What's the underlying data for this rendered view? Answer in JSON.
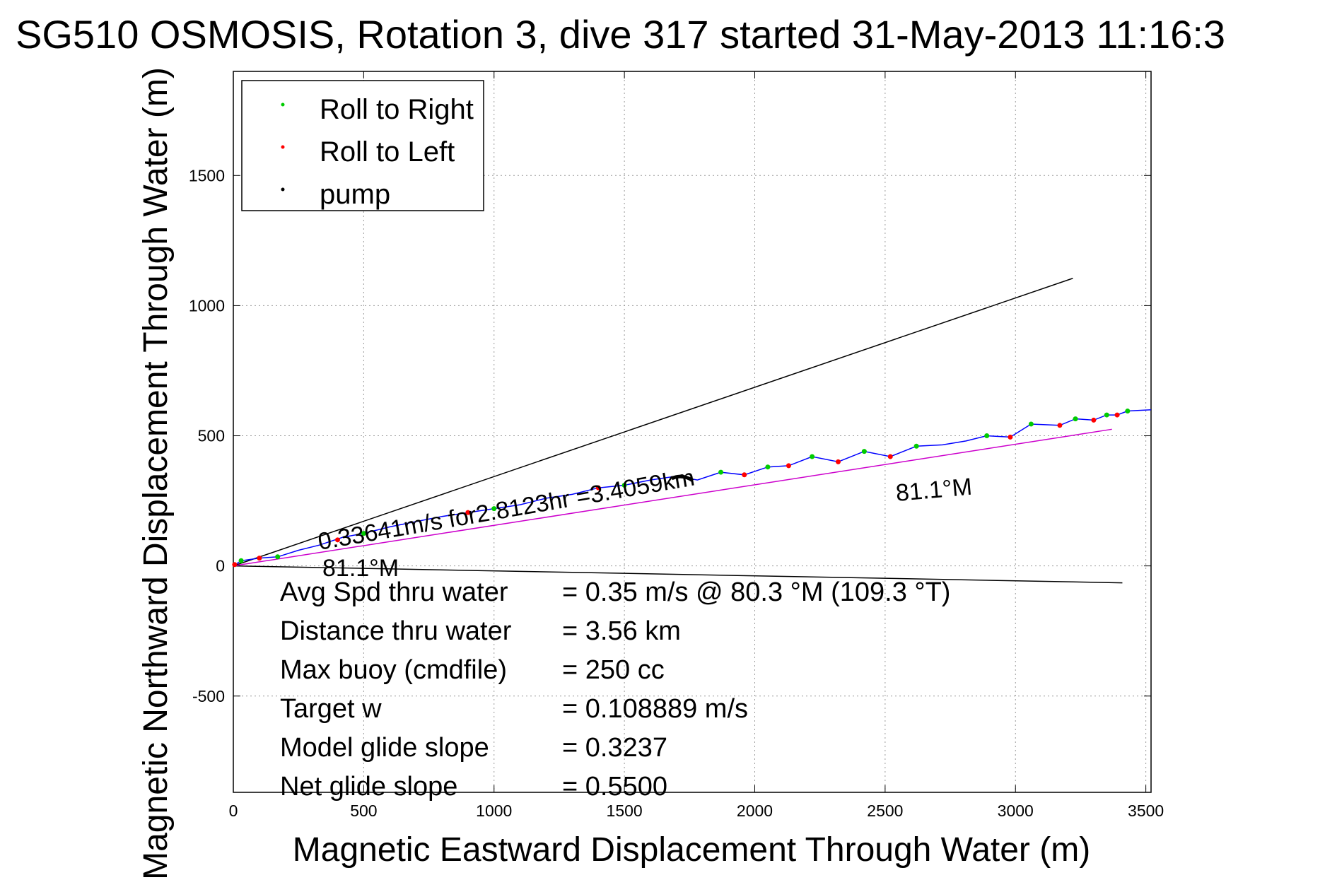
{
  "chart_data": {
    "type": "line",
    "title": "SG510 OSMOSIS, Rotation 3, dive 317 started 31-May-2013 11:16:3",
    "xlabel": "Magnetic Eastward Displacement Through Water (m)",
    "ylabel": "Magnetic Northward Displacement Through Water (m)",
    "xlim": [
      0,
      3520
    ],
    "ylim": [
      -870,
      1900
    ],
    "xticks": [
      0,
      500,
      1000,
      1500,
      2000,
      2500,
      3000,
      3500
    ],
    "yticks": [
      -500,
      0,
      500,
      1000,
      1500
    ],
    "grid": true,
    "legend_position": "top-left",
    "legend": [
      {
        "name": "Roll to Right",
        "color": "#00cc00"
      },
      {
        "name": "Roll to Left",
        "color": "#ff0000"
      },
      {
        "name": "pump",
        "color": "#000000"
      }
    ],
    "series": [
      {
        "name": "track",
        "color": "#0000ff",
        "x": [
          0,
          30,
          100,
          170,
          250,
          330,
          420,
          500,
          600,
          700,
          800,
          900,
          1000,
          1100,
          1200,
          1300,
          1400,
          1500,
          1600,
          1700,
          1780,
          1870,
          1960,
          2050,
          2130,
          2220,
          2320,
          2420,
          2520,
          2620,
          2720,
          2810,
          2890,
          2980,
          3060,
          3170,
          3230,
          3300,
          3350,
          3390,
          3430,
          3520
        ],
        "y": [
          0,
          20,
          30,
          35,
          60,
          80,
          110,
          125,
          150,
          170,
          190,
          205,
          220,
          235,
          260,
          275,
          300,
          310,
          330,
          345,
          330,
          360,
          350,
          380,
          385,
          420,
          400,
          440,
          420,
          460,
          465,
          480,
          500,
          495,
          545,
          540,
          565,
          560,
          580,
          580,
          595,
          600
        ]
      },
      {
        "name": "Roll to Right",
        "color": "#00cc00",
        "x": [
          30,
          170,
          500,
          1000,
          1500,
          1870,
          2050,
          2220,
          2420,
          2620,
          2890,
          3060,
          3230,
          3350,
          3430
        ],
        "y": [
          20,
          35,
          125,
          220,
          310,
          360,
          380,
          420,
          440,
          460,
          500,
          545,
          565,
          580,
          595
        ]
      },
      {
        "name": "Roll to Left",
        "color": "#ff0000",
        "x": [
          5,
          100,
          400,
          900,
          1400,
          1960,
          2130,
          2320,
          2520,
          2980,
          3170,
          3300,
          3390
        ],
        "y": [
          5,
          30,
          100,
          205,
          300,
          350,
          385,
          400,
          420,
          495,
          540,
          560,
          580
        ]
      }
    ],
    "lines": [
      {
        "name": "heading-line-upper",
        "color": "#000000",
        "x": [
          0,
          3220
        ],
        "y": [
          0,
          1105
        ]
      },
      {
        "name": "heading-line-lower",
        "color": "#000000",
        "x": [
          0,
          3410
        ],
        "y": [
          0,
          -65
        ]
      },
      {
        "name": "course-line",
        "color": "#cc00cc",
        "x": [
          0,
          3370
        ],
        "y": [
          0,
          525
        ]
      }
    ],
    "annotations": {
      "speed_summary": "0.33641m/s for2.8123hr =3.4059km",
      "heading_near_origin": "81.1°M",
      "heading_mid": "81.1°M"
    },
    "stats": [
      {
        "label": "Avg Spd thru water",
        "value": "=  0.35 m/s @  80.3 °M (109.3 °T)"
      },
      {
        "label": "Distance thru water",
        "value": "=  3.56 km"
      },
      {
        "label": "Max buoy (cmdfile)",
        "value": "= 250 cc"
      },
      {
        "label": "Target w",
        "value": "= 0.108889 m/s"
      },
      {
        "label": "Model glide slope",
        "value": "= 0.3237"
      },
      {
        "label": "Net glide slope",
        "value": "= 0.5500"
      }
    ]
  }
}
